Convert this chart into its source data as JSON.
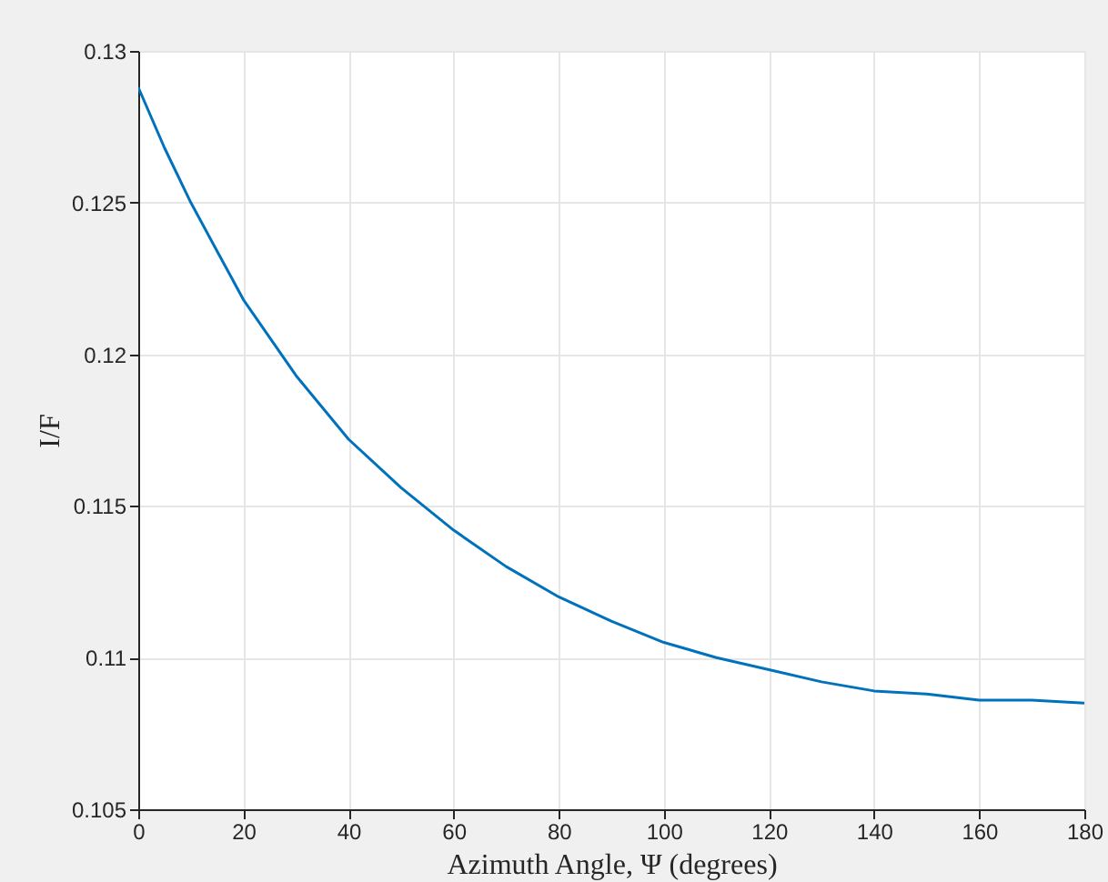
{
  "chart_data": {
    "type": "line",
    "xlabel": "Azimuth Angle, Ψ (degrees)",
    "ylabel": "I/F",
    "x": [
      0,
      5,
      10,
      15,
      20,
      30,
      40,
      50,
      60,
      70,
      80,
      90,
      100,
      110,
      120,
      130,
      140,
      150,
      160,
      170,
      180
    ],
    "series": [
      {
        "color": "#0072bd",
        "values": [
          0.1288,
          0.1268,
          0.125,
          0.1234,
          0.1218,
          0.1193,
          0.1172,
          0.1156,
          0.1142,
          0.113,
          0.112,
          0.1112,
          0.1105,
          0.11,
          0.1096,
          0.1092,
          0.1089,
          0.1088,
          0.1086,
          0.1086,
          0.1085
        ]
      }
    ],
    "xlim": [
      0,
      180
    ],
    "xticks": [
      0,
      20,
      40,
      60,
      80,
      100,
      120,
      140,
      160,
      180
    ],
    "ylim": [
      0.105,
      0.13
    ],
    "yticks": [
      0.105,
      0.11,
      0.115,
      0.12,
      0.125,
      0.13
    ],
    "grid": true,
    "marker": "none",
    "line_style": "solid"
  }
}
